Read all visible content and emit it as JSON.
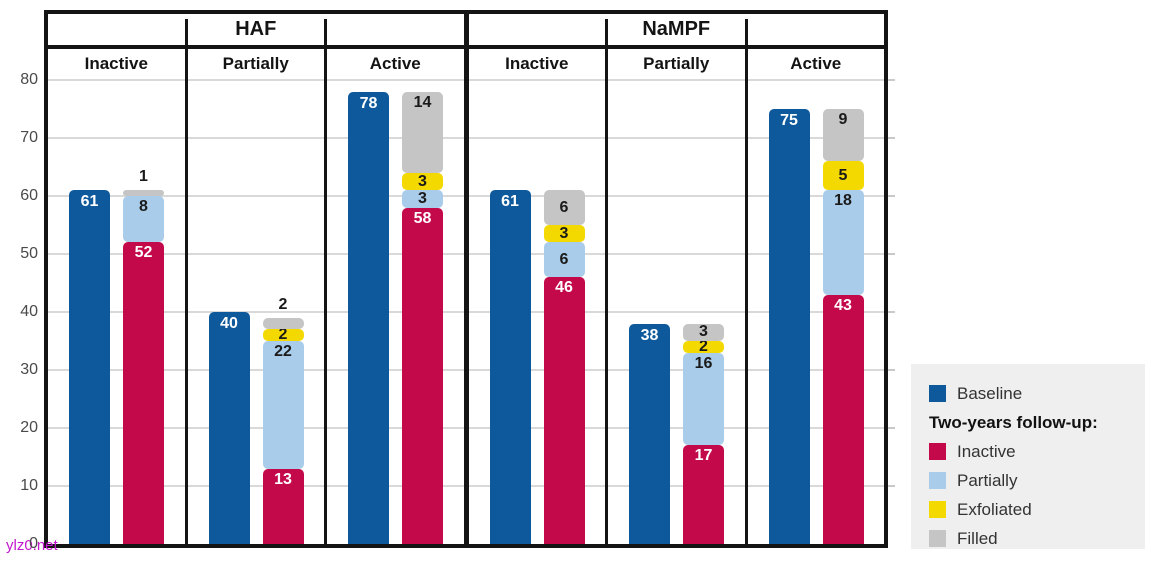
{
  "chart_data": {
    "type": "bar",
    "stacked": true,
    "title": "",
    "ylim": [
      0,
      80
    ],
    "y_ticks": [
      0,
      10,
      20,
      30,
      40,
      50,
      60,
      70,
      80
    ],
    "grid": "horizontal",
    "groups": [
      {
        "label": "HAF",
        "panels": [
          {
            "label": "Inactive",
            "baseline": 61,
            "followup": [
              {
                "name": "Inactive",
                "value": 52
              },
              {
                "name": "Partially",
                "value": 8
              },
              {
                "name": "Filled",
                "value": 1
              }
            ]
          },
          {
            "label": "Partially",
            "baseline": 40,
            "followup": [
              {
                "name": "Inactive",
                "value": 13
              },
              {
                "name": "Partially",
                "value": 22
              },
              {
                "name": "Exfoliated",
                "value": 2
              },
              {
                "name": "Filled",
                "value": 2
              }
            ]
          },
          {
            "label": "Active",
            "baseline": 78,
            "followup": [
              {
                "name": "Inactive",
                "value": 58
              },
              {
                "name": "Partially",
                "value": 3
              },
              {
                "name": "Exfoliated",
                "value": 3
              },
              {
                "name": "Filled",
                "value": 14
              }
            ]
          }
        ]
      },
      {
        "label": "NaMPF",
        "panels": [
          {
            "label": "Inactive",
            "baseline": 61,
            "followup": [
              {
                "name": "Inactive",
                "value": 46
              },
              {
                "name": "Partially",
                "value": 6
              },
              {
                "name": "Exfoliated",
                "value": 3
              },
              {
                "name": "Filled",
                "value": 6
              }
            ]
          },
          {
            "label": "Partially",
            "baseline": 38,
            "followup": [
              {
                "name": "Inactive",
                "value": 17
              },
              {
                "name": "Partially",
                "value": 16
              },
              {
                "name": "Exfoliated",
                "value": 2
              },
              {
                "name": "Filled",
                "value": 3
              }
            ]
          },
          {
            "label": "Active",
            "baseline": 75,
            "followup": [
              {
                "name": "Inactive",
                "value": 43
              },
              {
                "name": "Partially",
                "value": 18
              },
              {
                "name": "Exfoliated",
                "value": 5
              },
              {
                "name": "Filled",
                "value": 9
              }
            ]
          }
        ]
      }
    ],
    "series_colors": {
      "Baseline": "#0e599c",
      "Inactive": "#c4094b",
      "Partially": "#a9ccea",
      "Exfoliated": "#f3d900",
      "Filled": "#c5c5c5"
    }
  },
  "legend": {
    "baseline": {
      "label": "Baseline",
      "color": "#0e599c"
    },
    "followup_title": "Two-years follow-up:",
    "items": [
      {
        "label": "Inactive",
        "color": "#c4094b"
      },
      {
        "label": "Partially",
        "color": "#a9ccea"
      },
      {
        "label": "Exfoliated",
        "color": "#f3d900"
      },
      {
        "label": "Filled",
        "color": "#c5c5c5"
      }
    ]
  },
  "watermark": "ylz0.net"
}
